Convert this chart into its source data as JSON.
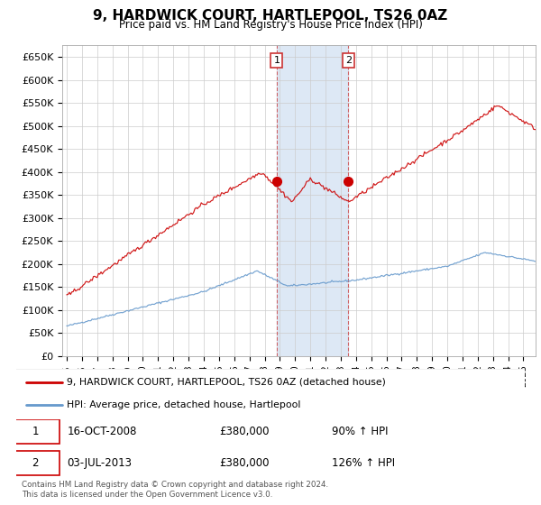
{
  "title": "9, HARDWICK COURT, HARTLEPOOL, TS26 0AZ",
  "subtitle": "Price paid vs. HM Land Registry's House Price Index (HPI)",
  "legend_line1": "9, HARDWICK COURT, HARTLEPOOL, TS26 0AZ (detached house)",
  "legend_line2": "HPI: Average price, detached house, Hartlepool",
  "transaction1_date": "16-OCT-2008",
  "transaction1_price": "£380,000",
  "transaction1_hpi": "90% ↑ HPI",
  "transaction2_date": "03-JUL-2013",
  "transaction2_price": "£380,000",
  "transaction2_hpi": "126% ↑ HPI",
  "footer": "Contains HM Land Registry data © Crown copyright and database right 2024.\nThis data is licensed under the Open Government Licence v3.0.",
  "hpi_color": "#6699cc",
  "price_color": "#cc0000",
  "shaded_color": "#dde8f5",
  "yticks": [
    0,
    50000,
    100000,
    150000,
    200000,
    250000,
    300000,
    350000,
    400000,
    450000,
    500000,
    550000,
    600000,
    650000
  ],
  "xlim_start": 1994.7,
  "xlim_end": 2025.8,
  "t1_yr": 2008.79,
  "t2_yr": 2013.5,
  "t1_price": 380000,
  "t2_price": 380000
}
